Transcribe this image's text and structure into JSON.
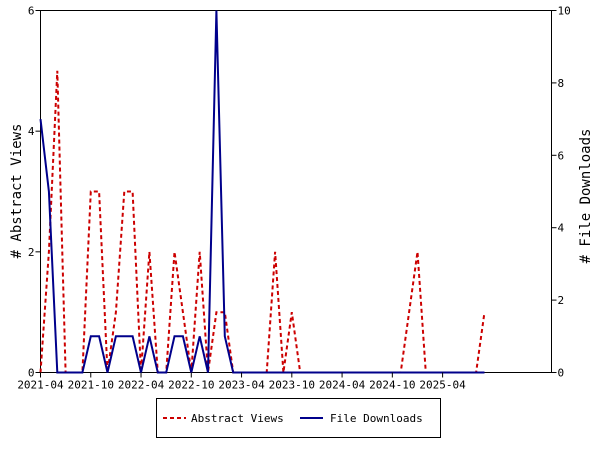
{
  "chart_data": {
    "type": "line",
    "x_tick_labels": [
      "2021-04",
      "2021-10",
      "2022-04",
      "2022-10",
      "2023-04",
      "2023-10",
      "2024-04",
      "2024-10",
      "2025-04"
    ],
    "x_ticks": [
      "2021-04",
      "2021-10",
      "2022-04",
      "2022-10",
      "2023-04",
      "2023-10",
      "2024-04",
      "2024-10",
      "2025-04"
    ],
    "xlim": [
      "2021-04",
      "2026-05"
    ],
    "y_left": {
      "label": "# Abstract Views",
      "ylim": [
        0,
        6
      ],
      "ticks": [
        "0",
        "2",
        "4",
        "6"
      ]
    },
    "y_right": {
      "label": "# File Downloads",
      "ylim": [
        0,
        10
      ],
      "ticks": [
        "0",
        "2",
        "4",
        "6",
        "8",
        "10"
      ]
    },
    "grid": false,
    "legend_placement": "bottom-center",
    "series": [
      {
        "name": "Abstract Views",
        "axis": "left",
        "color": "#cc0000",
        "style": "dashed",
        "x": [
          "2021-04",
          "2021-05",
          "2021-06",
          "2021-07",
          "2021-08",
          "2021-09",
          "2021-10",
          "2021-11",
          "2021-12",
          "2022-01",
          "2022-02",
          "2022-03",
          "2022-04",
          "2022-05",
          "2022-06",
          "2022-07",
          "2022-08",
          "2022-09",
          "2022-10",
          "2022-11",
          "2022-12",
          "2023-01",
          "2023-02",
          "2023-03",
          "2023-04",
          "2023-05",
          "2023-06",
          "2023-07",
          "2023-08",
          "2023-09",
          "2023-10",
          "2023-11",
          "2023-12",
          "2024-01",
          "2024-02",
          "2024-03",
          "2024-04",
          "2024-05",
          "2024-06",
          "2024-07",
          "2024-08",
          "2024-09",
          "2024-10",
          "2024-11",
          "2024-12",
          "2025-01",
          "2025-02",
          "2025-03",
          "2025-04",
          "2025-05",
          "2025-06",
          "2025-07",
          "2025-08",
          "2025-09"
        ],
        "values": [
          0,
          2,
          5,
          0,
          0,
          0,
          3,
          3,
          0,
          1,
          3,
          3,
          0,
          2,
          0,
          0,
          2,
          1,
          0,
          2,
          0,
          1,
          1,
          0,
          0,
          0,
          0,
          0,
          2,
          0,
          1,
          0,
          0,
          0,
          0,
          0,
          0,
          0,
          0,
          0,
          0,
          0,
          0,
          0,
          1,
          2,
          0,
          0,
          0,
          0,
          0,
          0,
          0,
          1
        ]
      },
      {
        "name": "File Downloads",
        "axis": "right",
        "color": "#00008b",
        "style": "solid",
        "x": [
          "2021-04",
          "2021-05",
          "2021-06",
          "2021-07",
          "2021-08",
          "2021-09",
          "2021-10",
          "2021-11",
          "2021-12",
          "2022-01",
          "2022-02",
          "2022-03",
          "2022-04",
          "2022-05",
          "2022-06",
          "2022-07",
          "2022-08",
          "2022-09",
          "2022-10",
          "2022-11",
          "2022-12",
          "2023-01",
          "2023-02",
          "2023-03",
          "2023-04",
          "2023-05",
          "2023-06",
          "2023-07",
          "2023-08",
          "2023-09",
          "2023-10",
          "2023-11",
          "2023-12",
          "2024-01",
          "2024-02",
          "2024-03",
          "2024-04",
          "2024-05",
          "2024-06",
          "2024-07",
          "2024-08",
          "2024-09",
          "2024-10",
          "2024-11",
          "2024-12",
          "2025-01",
          "2025-02",
          "2025-03",
          "2025-04",
          "2025-05",
          "2025-06",
          "2025-07",
          "2025-08",
          "2025-09"
        ],
        "values": [
          7,
          5,
          0,
          0,
          0,
          0,
          1,
          1,
          0,
          1,
          1,
          1,
          0,
          1,
          0,
          0,
          1,
          1,
          0,
          1,
          0,
          10,
          1,
          0,
          0,
          0,
          0,
          0,
          0,
          0,
          0,
          0,
          0,
          0,
          0,
          0,
          0,
          0,
          0,
          0,
          0,
          0,
          0,
          0,
          0,
          0,
          0,
          0,
          0,
          0,
          0,
          0,
          0,
          0
        ]
      }
    ]
  }
}
